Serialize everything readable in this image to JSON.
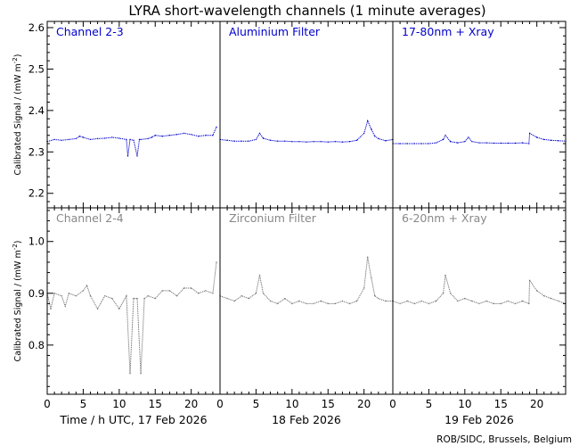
{
  "title": "LYRA short-wavelength channels (1 minute averages)",
  "credit": "ROB/SIDC, Brussels, Belgium",
  "x_axis": {
    "ticks": [
      "0",
      "5",
      "10",
      "15",
      "20"
    ],
    "day_labels": [
      "Time / h UTC, 17 Feb 2026",
      "18 Feb 2026",
      "19 Feb 2026"
    ],
    "range_per_day": [
      0,
      24
    ]
  },
  "rows": [
    {
      "ylabel": "Calibrated Signal / (mW m",
      "ylabel_sup": "-2",
      "ylabel_end": ")",
      "y_ticks": [
        "2.2",
        "2.3",
        "2.4",
        "2.5",
        "2.6"
      ],
      "label_color": "#0000cc",
      "series_color": "#0000cc"
    },
    {
      "ylabel": "Calibrated Signal / (mW m",
      "ylabel_sup": "-2",
      "ylabel_end": ")",
      "y_ticks": [
        "0.8",
        "0.9",
        "1.0"
      ],
      "label_color": "#888888",
      "series_color": "#777777"
    }
  ],
  "chart_data": [
    {
      "type": "line",
      "row": 0,
      "ylim": [
        2.165,
        2.615
      ],
      "grid": false,
      "panels": [
        {
          "name": "Channel 2-3",
          "day": "17 Feb 2026",
          "x": [
            0,
            1,
            2,
            3,
            4,
            4.5,
            5,
            6,
            7,
            8,
            9,
            10,
            11,
            11.2,
            11.5,
            12,
            12.5,
            12.8,
            13,
            14,
            14.5,
            15,
            16,
            17,
            18,
            19,
            20,
            21,
            22,
            23,
            23.5
          ],
          "y": [
            2.325,
            2.33,
            2.328,
            2.33,
            2.332,
            2.338,
            2.335,
            2.33,
            2.332,
            2.333,
            2.335,
            2.333,
            2.33,
            2.29,
            2.33,
            2.328,
            2.29,
            2.33,
            2.33,
            2.332,
            2.335,
            2.34,
            2.338,
            2.34,
            2.342,
            2.345,
            2.342,
            2.338,
            2.34,
            2.34,
            2.36
          ]
        },
        {
          "name": "Aluminium Filter",
          "day": "18 Feb 2026",
          "x": [
            0,
            1,
            2,
            3,
            4,
            5,
            5.5,
            6,
            7,
            8,
            9,
            10,
            11,
            12,
            13,
            14,
            15,
            16,
            17,
            18,
            19,
            20,
            20.5,
            21,
            21.5,
            22,
            23,
            24
          ],
          "y": [
            2.33,
            2.328,
            2.326,
            2.326,
            2.326,
            2.33,
            2.345,
            2.333,
            2.328,
            2.326,
            2.326,
            2.325,
            2.325,
            2.324,
            2.325,
            2.325,
            2.324,
            2.325,
            2.324,
            2.325,
            2.328,
            2.345,
            2.375,
            2.355,
            2.338,
            2.332,
            2.327,
            2.33
          ]
        },
        {
          "name": "17-80nm + Xray",
          "day": "19 Feb 2026",
          "x": [
            0,
            1,
            2,
            3,
            4,
            5,
            6,
            7,
            7.3,
            8,
            9,
            10,
            10.5,
            11,
            12,
            13,
            14,
            15,
            16,
            17,
            18,
            18.9,
            19,
            20,
            21,
            22,
            23,
            24
          ],
          "y": [
            2.32,
            2.32,
            2.32,
            2.32,
            2.32,
            2.32,
            2.322,
            2.33,
            2.34,
            2.325,
            2.322,
            2.325,
            2.335,
            2.325,
            2.322,
            2.322,
            2.321,
            2.321,
            2.321,
            2.321,
            2.322,
            2.32,
            2.345,
            2.335,
            2.33,
            2.328,
            2.327,
            2.326
          ]
        }
      ]
    },
    {
      "type": "line",
      "row": 1,
      "ylim": [
        0.705,
        1.065
      ],
      "grid": false,
      "panels": [
        {
          "name": "Channel 2-4",
          "day": "17 Feb 2026",
          "x": [
            0,
            0.5,
            1,
            2,
            2.5,
            3,
            4,
            5,
            5.5,
            6,
            7,
            8,
            9,
            10,
            11,
            11.5,
            12,
            12.5,
            13,
            13.5,
            14,
            15,
            16,
            17,
            18,
            19,
            20,
            21,
            22,
            23,
            23.5
          ],
          "y": [
            0.9,
            0.87,
            0.9,
            0.895,
            0.875,
            0.9,
            0.895,
            0.905,
            0.915,
            0.895,
            0.87,
            0.895,
            0.89,
            0.87,
            0.895,
            0.745,
            0.89,
            0.89,
            0.745,
            0.89,
            0.895,
            0.89,
            0.905,
            0.905,
            0.895,
            0.91,
            0.91,
            0.9,
            0.905,
            0.9,
            0.96
          ]
        },
        {
          "name": "Zirconium Filter",
          "day": "18 Feb 2026",
          "x": [
            0,
            1,
            2,
            3,
            4,
            5,
            5.5,
            6,
            7,
            8,
            9,
            10,
            11,
            12,
            13,
            14,
            15,
            16,
            17,
            18,
            19,
            20,
            20.5,
            21,
            21.5,
            22,
            23,
            24
          ],
          "y": [
            0.895,
            0.89,
            0.885,
            0.895,
            0.89,
            0.9,
            0.935,
            0.9,
            0.885,
            0.88,
            0.89,
            0.88,
            0.885,
            0.88,
            0.88,
            0.885,
            0.88,
            0.88,
            0.885,
            0.88,
            0.885,
            0.91,
            0.97,
            0.93,
            0.895,
            0.89,
            0.885,
            0.885
          ]
        },
        {
          "name": "6-20nm + Xray",
          "day": "19 Feb 2026",
          "x": [
            0,
            1,
            2,
            3,
            4,
            5,
            6,
            7,
            7.3,
            8,
            9,
            10,
            11,
            12,
            13,
            14,
            15,
            16,
            17,
            18,
            18.9,
            19,
            20,
            21,
            22,
            23,
            24
          ],
          "y": [
            0.885,
            0.88,
            0.885,
            0.88,
            0.885,
            0.88,
            0.885,
            0.9,
            0.935,
            0.9,
            0.885,
            0.89,
            0.885,
            0.88,
            0.885,
            0.88,
            0.88,
            0.885,
            0.88,
            0.885,
            0.88,
            0.925,
            0.905,
            0.895,
            0.89,
            0.885,
            0.88
          ]
        }
      ]
    }
  ]
}
